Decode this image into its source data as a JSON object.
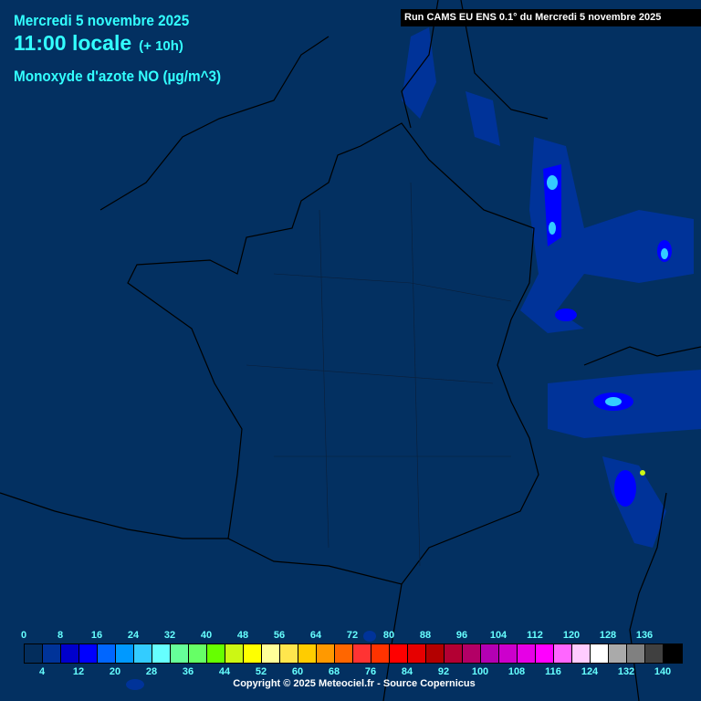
{
  "header": {
    "date": "Mercredi 5 novembre 2025",
    "time": "11:00 locale",
    "offset": "(+ 10h)",
    "parameter": "Monoxyde d'azote NO (µg/m^3)",
    "run": "Run CAMS EU ENS 0.1° du Mercredi 5 novembre 2025"
  },
  "legend": {
    "top_labels": [
      "0",
      "8",
      "16",
      "24",
      "32",
      "40",
      "48",
      "56",
      "64",
      "72",
      "80",
      "88",
      "96",
      "104",
      "112",
      "120",
      "128",
      "136"
    ],
    "bottom_labels": [
      "4",
      "12",
      "20",
      "28",
      "36",
      "44",
      "52",
      "60",
      "68",
      "76",
      "84",
      "92",
      "100",
      "108",
      "116",
      "124",
      "132",
      "140"
    ],
    "colors": [
      "#032d5c",
      "#003399",
      "#0000cc",
      "#0000ff",
      "#0066ff",
      "#0099ff",
      "#33ccff",
      "#66ffff",
      "#66ff99",
      "#66ff66",
      "#66ff00",
      "#ccf714",
      "#ffff00",
      "#ffff99",
      "#ffe64d",
      "#ffcc00",
      "#ff9900",
      "#ff6600",
      "#ff3333",
      "#ff3300",
      "#ff0000",
      "#e60000",
      "#b30000",
      "#b30033",
      "#b30066",
      "#b300b3",
      "#cc00cc",
      "#e600e6",
      "#ff00ff",
      "#ff66ff",
      "#ffccff",
      "#ffffff",
      "#aaaaaa",
      "#808080",
      "#404040",
      "#000000"
    ]
  },
  "footer": {
    "copyright": "Copyright © 2025 Meteociel.fr - Source Copernicus"
  }
}
